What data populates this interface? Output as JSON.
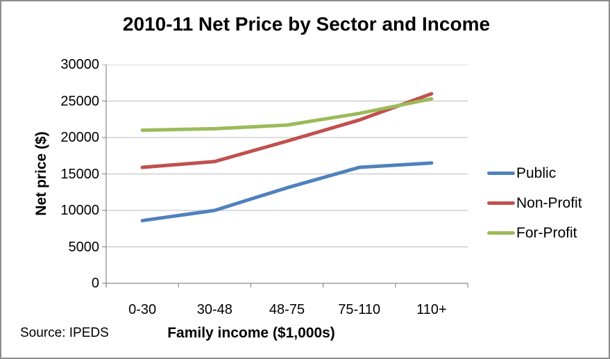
{
  "title": "2010-11 Net Price by Sector and Income",
  "source_note": "Source: IPEDS",
  "colors": {
    "axis": "#8a8a8a",
    "gridline": "#c6c6c6",
    "frame_border": "#8c8c8c",
    "text": "#000000",
    "background": "#ffffff"
  },
  "chart_data": {
    "type": "line",
    "title": "2010-11 Net Price by Sector and Income",
    "xlabel": "Family income ($1,000s)",
    "ylabel": "Net price ($)",
    "categories": [
      "0-30",
      "30-48",
      "48-75",
      "75-110",
      "110+"
    ],
    "series": [
      {
        "name": "Public",
        "color": "#4f81bd",
        "values": [
          8600,
          10000,
          13100,
          15900,
          16500
        ]
      },
      {
        "name": "Non-Profit",
        "color": "#c0504d",
        "values": [
          15900,
          16700,
          19500,
          22400,
          26000
        ]
      },
      {
        "name": "For-Profit",
        "color": "#9bbb59",
        "values": [
          21000,
          21200,
          21700,
          23300,
          25300
        ]
      }
    ],
    "ylim": [
      0,
      30000
    ],
    "y_ticks": [
      0,
      5000,
      10000,
      15000,
      20000,
      25000,
      30000
    ],
    "grid": "horizontal",
    "legend_position": "right"
  }
}
